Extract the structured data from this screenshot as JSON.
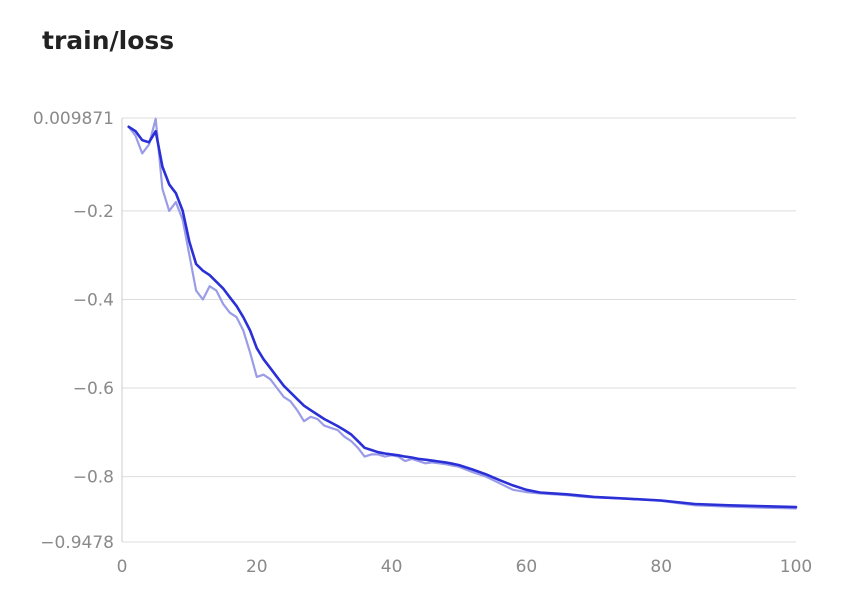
{
  "chart_data": {
    "type": "line",
    "title": "train/loss",
    "xlabel": "",
    "ylabel": "",
    "xlim": [
      0,
      100
    ],
    "ylim": [
      -0.9478,
      0.009871
    ],
    "x_ticks": [
      {
        "value": 0,
        "label": "0"
      },
      {
        "value": 20,
        "label": "20"
      },
      {
        "value": 40,
        "label": "40"
      },
      {
        "value": 60,
        "label": "60"
      },
      {
        "value": 80,
        "label": "80"
      },
      {
        "value": 100,
        "label": "100"
      }
    ],
    "y_ticks": [
      {
        "value": 0.009871,
        "label": "0.009871"
      },
      {
        "value": -0.2,
        "label": "−0.2"
      },
      {
        "value": -0.4,
        "label": "−0.4"
      },
      {
        "value": -0.6,
        "label": "−0.6"
      },
      {
        "value": -0.8,
        "label": "−0.8"
      },
      {
        "value": -0.9478,
        "label": "−0.9478"
      }
    ],
    "grid": true,
    "colors": {
      "raw": "#9b9ce8",
      "smoothed": "#2a2fd6"
    },
    "series": [
      {
        "key": "raw",
        "x": [
          1,
          2,
          3,
          4,
          5,
          6,
          7,
          8,
          9,
          10,
          11,
          12,
          13,
          14,
          15,
          16,
          17,
          18,
          19,
          20,
          21,
          22,
          23,
          24,
          25,
          26,
          27,
          28,
          29,
          30,
          31,
          32,
          33,
          34,
          35,
          36,
          37,
          38,
          39,
          40,
          41,
          42,
          43,
          44,
          45,
          46,
          47,
          48,
          49,
          50,
          52,
          54,
          56,
          58,
          60,
          62,
          64,
          66,
          68,
          70,
          75,
          80,
          85,
          90,
          95,
          100
        ],
        "y": [
          -0.01,
          -0.03,
          -0.07,
          -0.05,
          0.008,
          -0.15,
          -0.2,
          -0.18,
          -0.22,
          -0.3,
          -0.38,
          -0.4,
          -0.37,
          -0.38,
          -0.41,
          -0.43,
          -0.44,
          -0.47,
          -0.52,
          -0.575,
          -0.57,
          -0.58,
          -0.6,
          -0.62,
          -0.63,
          -0.65,
          -0.675,
          -0.665,
          -0.67,
          -0.685,
          -0.69,
          -0.695,
          -0.71,
          -0.72,
          -0.735,
          -0.755,
          -0.75,
          -0.75,
          -0.755,
          -0.752,
          -0.755,
          -0.765,
          -0.76,
          -0.765,
          -0.77,
          -0.768,
          -0.77,
          -0.772,
          -0.775,
          -0.778,
          -0.79,
          -0.8,
          -0.815,
          -0.83,
          -0.835,
          -0.838,
          -0.84,
          -0.842,
          -0.845,
          -0.847,
          -0.85,
          -0.855,
          -0.865,
          -0.868,
          -0.87,
          -0.872
        ]
      },
      {
        "key": "smoothed",
        "x": [
          1,
          2,
          3,
          4,
          5,
          6,
          7,
          8,
          9,
          10,
          11,
          12,
          13,
          14,
          15,
          16,
          17,
          18,
          19,
          20,
          21,
          22,
          23,
          24,
          25,
          26,
          27,
          28,
          29,
          30,
          31,
          32,
          33,
          34,
          35,
          36,
          37,
          38,
          39,
          40,
          41,
          42,
          43,
          44,
          45,
          46,
          47,
          48,
          49,
          50,
          52,
          54,
          56,
          58,
          60,
          62,
          64,
          66,
          68,
          70,
          75,
          80,
          85,
          90,
          95,
          100
        ],
        "y": [
          -0.01,
          -0.02,
          -0.04,
          -0.045,
          -0.02,
          -0.1,
          -0.14,
          -0.16,
          -0.2,
          -0.27,
          -0.32,
          -0.335,
          -0.345,
          -0.36,
          -0.375,
          -0.395,
          -0.415,
          -0.44,
          -0.47,
          -0.51,
          -0.535,
          -0.555,
          -0.575,
          -0.595,
          -0.61,
          -0.625,
          -0.64,
          -0.65,
          -0.66,
          -0.67,
          -0.678,
          -0.686,
          -0.695,
          -0.705,
          -0.72,
          -0.735,
          -0.74,
          -0.745,
          -0.748,
          -0.75,
          -0.752,
          -0.755,
          -0.757,
          -0.76,
          -0.762,
          -0.764,
          -0.766,
          -0.768,
          -0.771,
          -0.774,
          -0.784,
          -0.795,
          -0.808,
          -0.82,
          -0.83,
          -0.836,
          -0.838,
          -0.84,
          -0.843,
          -0.846,
          -0.85,
          -0.854,
          -0.862,
          -0.865,
          -0.867,
          -0.869
        ]
      }
    ]
  }
}
